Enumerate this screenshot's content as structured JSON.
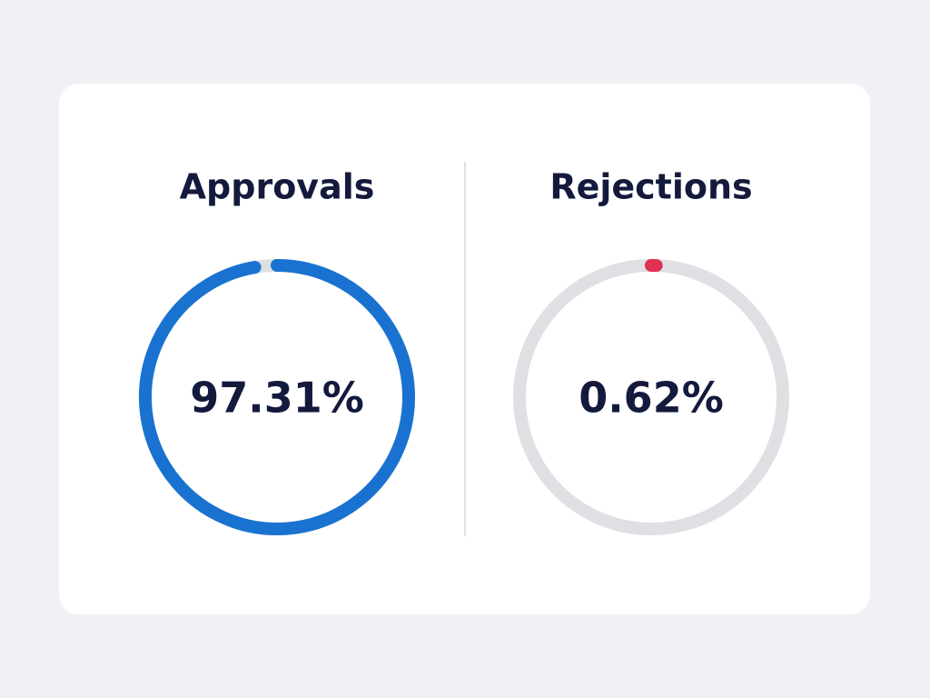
{
  "chart_data": [
    {
      "type": "gauge",
      "title": "Approvals",
      "values": [
        97.31
      ],
      "value_labels": [
        "97.31%"
      ],
      "color": "#1a72d0",
      "track_color": "#dfe0e3",
      "ylim": [
        0,
        100
      ]
    },
    {
      "type": "gauge",
      "title": "Rejections",
      "values": [
        0.62
      ],
      "value_labels": [
        "0.62%"
      ],
      "color": "#e0304f",
      "track_color": "#dfe0e3",
      "ylim": [
        0,
        100
      ]
    }
  ]
}
